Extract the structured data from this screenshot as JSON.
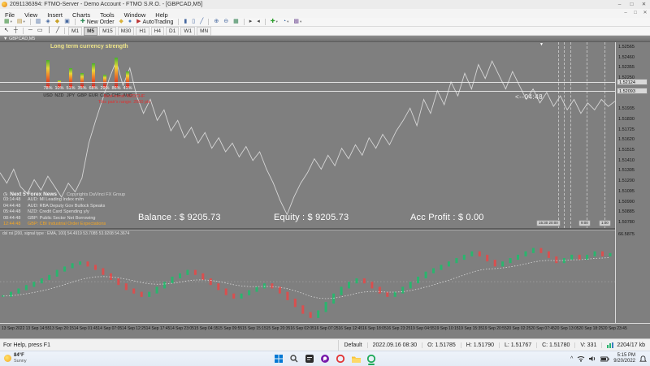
{
  "window": {
    "title": "2091136394: FTMO-Server - Demo Account - FTMO S.R.O. - [GBPCAD,M5]",
    "controls": {
      "minimize": "–",
      "maximize": "□",
      "close": "✕"
    }
  },
  "menu": {
    "items": [
      "File",
      "View",
      "Insert",
      "Charts",
      "Tools",
      "Window",
      "Help"
    ]
  },
  "toolbar_main": {
    "items": [
      {
        "name": "new-chart-button",
        "glyph": "▦",
        "color": "#3f8f3f",
        "caret": true
      },
      {
        "name": "profiles-button",
        "glyph": "▤",
        "color": "#b08a2e",
        "caret": true
      },
      {
        "name": "sep"
      },
      {
        "name": "market-watch-button",
        "glyph": "▥",
        "color": "#44679f"
      },
      {
        "name": "data-window-button",
        "glyph": "◈",
        "color": "#44679f"
      },
      {
        "name": "navigator-button",
        "glyph": "◆",
        "color": "#c9a227"
      },
      {
        "name": "toolbox-button",
        "glyph": "▣",
        "color": "#44679f"
      },
      {
        "name": "sep"
      },
      {
        "name": "new-order-button",
        "glyph": "✚",
        "color": "#2e8b57",
        "label": "New Order"
      },
      {
        "name": "metaeditor-button",
        "glyph": "◆",
        "color": "#d8b23a"
      },
      {
        "name": "community-button",
        "glyph": "●",
        "color": "#4a7ebb"
      },
      {
        "name": "autotrading-button",
        "glyph": "▶",
        "color": "#bb3333",
        "label": "AutoTrading"
      },
      {
        "name": "sep"
      },
      {
        "name": "bar-chart-button",
        "glyph": "▮",
        "color": "#44679f"
      },
      {
        "name": "candle-chart-button",
        "glyph": "▯",
        "color": "#44679f"
      },
      {
        "name": "line-chart-button",
        "glyph": "╱",
        "color": "#44679f"
      },
      {
        "name": "sep"
      },
      {
        "name": "zoom-in-button",
        "glyph": "⊕",
        "color": "#44679f"
      },
      {
        "name": "zoom-out-button",
        "glyph": "⊖",
        "color": "#44679f"
      },
      {
        "name": "tile-windows-button",
        "glyph": "▦",
        "color": "#2f7f4f"
      },
      {
        "name": "sep"
      },
      {
        "name": "auto-scroll-button",
        "glyph": "▸",
        "color": "#444444"
      },
      {
        "name": "chart-shift-button",
        "glyph": "◂",
        "color": "#444444"
      },
      {
        "name": "sep"
      },
      {
        "name": "indicators-button",
        "glyph": "✚",
        "color": "#2f9f2f",
        "caret": true
      },
      {
        "name": "periods-button",
        "glyph": "◔",
        "color": "#2f5f9f",
        "caret": true
      },
      {
        "name": "templates-button",
        "glyph": "▩",
        "color": "#7f5f9f",
        "caret": true
      }
    ]
  },
  "toolbar_draw": {
    "items": [
      {
        "name": "cursor-tool",
        "glyph": "↖",
        "color": "#333333"
      },
      {
        "name": "crosshair-tool",
        "glyph": "┼",
        "color": "#333333"
      },
      {
        "name": "sep"
      },
      {
        "name": "hline-tool",
        "glyph": "─",
        "color": "#333333"
      },
      {
        "name": "rect-tool",
        "glyph": "▭",
        "color": "#333333"
      },
      {
        "name": "vline-tool",
        "glyph": "│",
        "color": "#333333"
      },
      {
        "name": "trendline-tool",
        "glyph": "╱",
        "color": "#333333"
      },
      {
        "name": "sep"
      }
    ]
  },
  "timeframes": {
    "items": [
      "M1",
      "M5",
      "M15",
      "M30",
      "H1",
      "H4",
      "D1",
      "W1",
      "MN"
    ],
    "active": "M5"
  },
  "chart": {
    "symbol_tab": "▼ GBPCAD,M5",
    "strength": {
      "title": "Long term currency strength",
      "currencies": [
        "USD",
        "NZD",
        "JPY",
        "GBP",
        "EUR",
        "CAD",
        "CHF",
        "AUD"
      ],
      "percents": [
        "78%",
        "10%",
        "51%",
        "35%",
        "68%",
        "29%",
        "86%",
        "41%"
      ],
      "values": [
        78,
        10,
        51,
        35,
        68,
        29,
        86,
        41
      ],
      "note_line1": "Best trend: NZDCHF",
      "note_line2": "This pair's range: 2600 pts"
    },
    "countdown": "<--04:48",
    "bid_box": "1.52124",
    "ask_box": "1.52093",
    "price_scale": [
      "1.52565",
      "1.52460",
      "1.52355",
      "1.52250",
      "1.51935",
      "1.51830",
      "1.51725",
      "1.51620",
      "1.51515",
      "1.51410",
      "1.51305",
      "1.51200",
      "1.51095",
      "1.50990",
      "1.50885",
      "1.50780"
    ],
    "session_labels": [
      "15:30 20:00",
      "9:00",
      "1:00"
    ],
    "line_points": [
      0.72,
      0.78,
      0.7,
      0.8,
      0.84,
      0.76,
      0.82,
      0.74,
      0.8,
      0.86,
      0.78,
      0.83,
      0.75,
      0.55,
      0.42,
      0.3,
      0.18,
      0.08,
      0.22,
      0.12,
      0.28,
      0.38,
      0.3,
      0.42,
      0.36,
      0.48,
      0.42,
      0.52,
      0.46,
      0.55,
      0.49,
      0.58,
      0.52,
      0.6,
      0.55,
      0.63,
      0.57,
      0.65,
      0.6,
      0.7,
      0.78,
      0.88,
      0.96,
      0.86,
      0.78,
      0.72,
      0.64,
      0.7,
      0.62,
      0.68,
      0.58,
      0.64,
      0.56,
      0.62,
      0.52,
      0.58,
      0.5,
      0.56,
      0.48,
      0.42,
      0.35,
      0.45,
      0.3,
      0.38,
      0.25,
      0.33,
      0.2,
      0.28,
      0.15,
      0.24,
      0.1,
      0.18,
      0.08,
      0.16,
      0.24,
      0.14,
      0.22,
      0.3,
      0.24,
      0.32,
      0.26,
      0.34,
      0.28,
      0.36,
      0.3,
      0.38,
      0.32,
      0.36,
      0.3,
      0.34,
      0.31
    ]
  },
  "news": {
    "header": "Next 5 Forex News",
    "copyright": "Copyrights DaVinci FX Group",
    "items": [
      {
        "time": "03:14:48",
        "text": "AUD: MI Leading Index m/m",
        "highlight": false
      },
      {
        "time": "04:44:48",
        "text": "AUD: RBA Deputy Gov Bullock Speaks",
        "highlight": false
      },
      {
        "time": "05:44:48",
        "text": "NZD: Credit Card Spending y/y",
        "highlight": false
      },
      {
        "time": "08:44:48",
        "text": "GBP: Public Sector Net Borrowing",
        "highlight": false
      },
      {
        "time": "12:44:48",
        "text": "GBP: CBI Industrial Order Expectations",
        "highlight": true
      }
    ]
  },
  "account": {
    "balance": "Balance : $ 9205.73",
    "equity": "Equity : $ 9205.73",
    "profit": "Acc Profit : $ 0.00"
  },
  "indicator": {
    "header": "dsl rsi [200, signal type : EMA, 100]  54.4919 53.7085 53.9208 54.3674",
    "scale_top": "66.5875",
    "scale_bottom": "38.4276",
    "bars": [
      0.7,
      0.66,
      0.62,
      0.58,
      0.54,
      0.5,
      0.46,
      0.4,
      0.36,
      0.32,
      0.3,
      0.34,
      0.38,
      0.44,
      0.5,
      0.56,
      0.62,
      0.66,
      0.7,
      0.66,
      0.6,
      0.54,
      0.48,
      0.44,
      0.4,
      0.44,
      0.5,
      0.56,
      0.62,
      0.68,
      0.72,
      0.68,
      0.64,
      0.6,
      0.56,
      0.6,
      0.66,
      0.74,
      0.82,
      0.9,
      0.95,
      0.88,
      0.78,
      0.68,
      0.6,
      0.54,
      0.5,
      0.54,
      0.6,
      0.66,
      0.7,
      0.66,
      0.6,
      0.54,
      0.48,
      0.42,
      0.38,
      0.34,
      0.3,
      0.26,
      0.22,
      0.18,
      0.22,
      0.28,
      0.34,
      0.3,
      0.26,
      0.22,
      0.18,
      0.14,
      0.18,
      0.24,
      0.3,
      0.26,
      0.22,
      0.26,
      0.22,
      0.18,
      0.22,
      0.2
    ],
    "up_color": "#2ab56e",
    "down_color": "#d94f4f"
  },
  "time_axis": [
    "13 Sep 2022",
    "13 Sep 14:55",
    "13 Sep 20:15",
    "14 Sep 01:45",
    "14 Sep 07:05",
    "14 Sep 12:25",
    "14 Sep 17:45",
    "14 Sep 23:05",
    "15 Sep 04:35",
    "15 Sep 09:55",
    "15 Sep 15:15",
    "15 Sep 20:35",
    "16 Sep 02:05",
    "16 Sep 07:25",
    "16 Sep 12:45",
    "16 Sep 18:05",
    "16 Sep 23:25",
    "19 Sep 04:55",
    "19 Sep 10:15",
    "19 Sep 15:35",
    "19 Sep 20:55",
    "20 Sep 02:25",
    "20 Sep 07:45",
    "20 Sep 13:05",
    "20 Sep 18:25",
    "20 Sep 23:45"
  ],
  "status_bar": {
    "help": "For Help, press F1",
    "profile": "Default",
    "cells": [
      "2022.09.16 08:30",
      "O: 1.51785",
      "H: 1.51790",
      "L: 1.51767",
      "C: 1.51780",
      "V: 331"
    ],
    "traffic": "2204/17 kb"
  },
  "taskbar": {
    "weather_temp": "84°F",
    "weather_desc": "Sunny",
    "time": "5:15 PM",
    "date": "9/20/2022"
  },
  "colors": {
    "chart_bg": "#7f7f7f",
    "price_line": "#d6d6d6",
    "news_highlight": "#f5a623",
    "strength_title": "#efe58a",
    "annotation_red": "#e23030"
  }
}
